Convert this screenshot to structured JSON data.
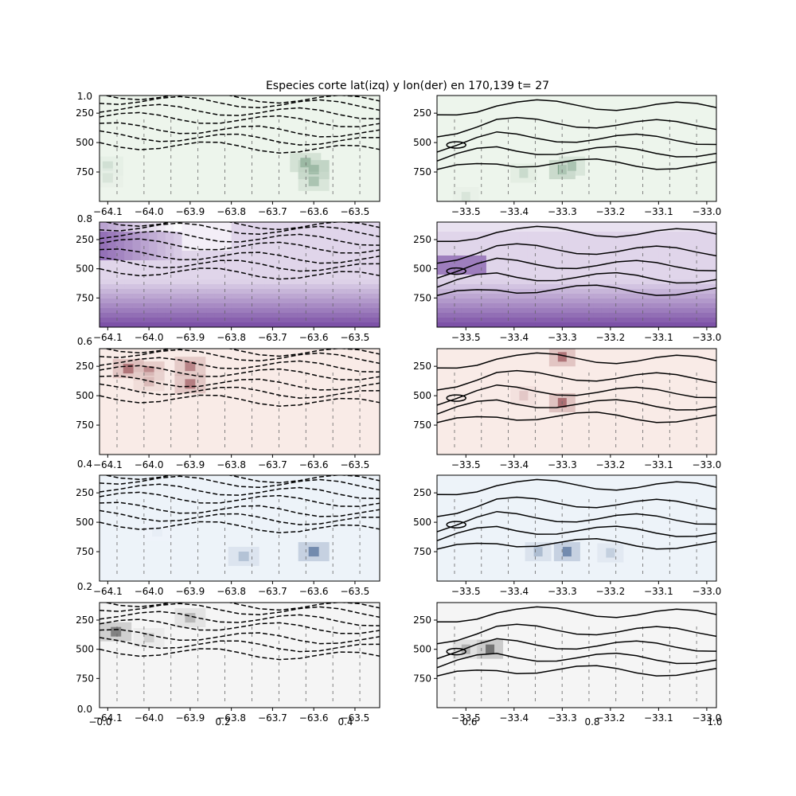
{
  "figure_title": "Especies corte lat(izq) y lon(der) en 170,139 t= 27",
  "chart_data": [
    {
      "type": "heatmap",
      "panel": "row1-left",
      "colormap": "greens",
      "xlim": [
        -64.12,
        -63.44
      ],
      "ylim": [
        1000,
        100
      ],
      "xticks": [
        "-64.1",
        "-64.0",
        "-63.9",
        "-63.8",
        "-63.7",
        "-63.6",
        "-63.5"
      ],
      "yticks": [
        "250",
        "500",
        "750"
      ],
      "contours": "dashed",
      "cells": [
        {
          "x": -64.1,
          "y": 700,
          "v": 0.25
        },
        {
          "x": -64.1,
          "y": 800,
          "v": 0.2
        },
        {
          "x": -63.6,
          "y": 730,
          "v": 0.95
        },
        {
          "x": -63.6,
          "y": 830,
          "v": 0.5
        },
        {
          "x": -63.62,
          "y": 670,
          "v": 0.6
        }
      ]
    },
    {
      "type": "heatmap",
      "panel": "row1-right",
      "colormap": "greens",
      "xlim": [
        -33.56,
        -32.98
      ],
      "ylim": [
        1000,
        100
      ],
      "xticks": [
        "-33.5",
        "-33.4",
        "-33.3",
        "-33.2",
        "-33.1",
        "-33.0"
      ],
      "yticks": [
        "250",
        "500",
        "750"
      ],
      "contours": "solid",
      "cells": [
        {
          "x": -33.38,
          "y": 760,
          "v": 0.3
        },
        {
          "x": -33.3,
          "y": 730,
          "v": 0.8
        },
        {
          "x": -33.28,
          "y": 700,
          "v": 0.5
        },
        {
          "x": -33.5,
          "y": 960,
          "v": 0.2
        }
      ]
    },
    {
      "type": "heatmap",
      "panel": "row2-left",
      "colormap": "purples",
      "xlim": [
        -64.12,
        -63.44
      ],
      "ylim": [
        1000,
        100
      ],
      "xticks": [
        "-64.1",
        "-64.0",
        "-63.9",
        "-63.8",
        "-63.7",
        "-63.6",
        "-63.5"
      ],
      "yticks": [
        "250",
        "500",
        "750"
      ],
      "contours": "dashed"
    },
    {
      "type": "heatmap",
      "panel": "row2-right",
      "colormap": "purples",
      "xlim": [
        -33.56,
        -32.98
      ],
      "ylim": [
        1000,
        100
      ],
      "xticks": [
        "-33.5",
        "-33.4",
        "-33.3",
        "-33.2",
        "-33.1",
        "-33.0"
      ],
      "yticks": [
        "250",
        "500",
        "750"
      ],
      "contours": "solid"
    },
    {
      "type": "heatmap",
      "panel": "row3-left",
      "colormap": "reds",
      "xlim": [
        -64.12,
        -63.44
      ],
      "ylim": [
        1000,
        100
      ],
      "xticks": [
        "-64.1",
        "-64.0",
        "-63.9",
        "-63.8",
        "-63.7",
        "-63.6",
        "-63.5"
      ],
      "yticks": [
        "250",
        "500",
        "750"
      ],
      "contours": "dashed",
      "cells": [
        {
          "x": -64.05,
          "y": 270,
          "v": 0.85
        },
        {
          "x": -64.0,
          "y": 290,
          "v": 0.7
        },
        {
          "x": -63.9,
          "y": 250,
          "v": 0.75
        },
        {
          "x": -63.9,
          "y": 400,
          "v": 0.8
        },
        {
          "x": -64.0,
          "y": 380,
          "v": 0.4
        }
      ]
    },
    {
      "type": "heatmap",
      "panel": "row3-right",
      "colormap": "reds",
      "xlim": [
        -33.56,
        -32.98
      ],
      "ylim": [
        1000,
        100
      ],
      "xticks": [
        "-33.5",
        "-33.4",
        "-33.3",
        "-33.2",
        "-33.1",
        "-33.0"
      ],
      "yticks": [
        "250",
        "500",
        "750"
      ],
      "contours": "solid",
      "cells": [
        {
          "x": -33.3,
          "y": 170,
          "v": 0.85
        },
        {
          "x": -33.3,
          "y": 560,
          "v": 0.9
        },
        {
          "x": -33.38,
          "y": 500,
          "v": 0.3
        }
      ]
    },
    {
      "type": "heatmap",
      "panel": "row4-left",
      "colormap": "blues",
      "xlim": [
        -64.12,
        -63.44
      ],
      "ylim": [
        1000,
        100
      ],
      "xticks": [
        "-64.1",
        "-64.0",
        "-63.9",
        "-63.8",
        "-63.7",
        "-63.6",
        "-63.5"
      ],
      "yticks": [
        "250",
        "500",
        "750"
      ],
      "contours": "dashed",
      "cells": [
        {
          "x": -63.6,
          "y": 750,
          "v": 0.9
        },
        {
          "x": -63.77,
          "y": 790,
          "v": 0.45
        },
        {
          "x": -63.98,
          "y": 580,
          "v": 0.1
        }
      ]
    },
    {
      "type": "heatmap",
      "panel": "row4-right",
      "colormap": "blues",
      "xlim": [
        -33.56,
        -32.98
      ],
      "ylim": [
        1000,
        100
      ],
      "xticks": [
        "-33.5",
        "-33.4",
        "-33.3",
        "-33.2",
        "-33.1",
        "-33.0"
      ],
      "yticks": [
        "250",
        "500",
        "750"
      ],
      "contours": "solid",
      "cells": [
        {
          "x": -33.29,
          "y": 750,
          "v": 0.9
        },
        {
          "x": -33.35,
          "y": 750,
          "v": 0.5
        },
        {
          "x": -33.2,
          "y": 760,
          "v": 0.35
        }
      ]
    },
    {
      "type": "heatmap",
      "panel": "row5-left",
      "colormap": "greys",
      "xlim": [
        -64.12,
        -63.44
      ],
      "ylim": [
        1000,
        100
      ],
      "xticks": [
        "-64.1",
        "-64.0",
        "-63.9",
        "-63.8",
        "-63.7",
        "-63.6",
        "-63.5"
      ],
      "yticks": [
        "250",
        "500",
        "750"
      ],
      "contours": "dashed",
      "cells": [
        {
          "x": -64.08,
          "y": 350,
          "v": 0.8
        },
        {
          "x": -63.9,
          "y": 230,
          "v": 0.45
        },
        {
          "x": -64.0,
          "y": 400,
          "v": 0.3
        }
      ]
    },
    {
      "type": "heatmap",
      "panel": "row5-right",
      "colormap": "greys",
      "xlim": [
        -33.56,
        -32.98
      ],
      "ylim": [
        1000,
        100
      ],
      "xticks": [
        "-33.5",
        "-33.4",
        "-33.3",
        "-33.2",
        "-33.1",
        "-33.0"
      ],
      "yticks": [
        "250",
        "500",
        "750"
      ],
      "contours": "solid",
      "cells": [
        {
          "x": -33.45,
          "y": 500,
          "v": 0.9
        },
        {
          "x": -33.5,
          "y": 500,
          "v": 0.5
        }
      ]
    }
  ],
  "left_colorbar_ticks": [
    "1.0",
    "0.8",
    "0.6",
    "0.4",
    "0.2",
    "0.0"
  ],
  "bottom_overlay_left": [
    "−0.0",
    "0.2",
    "0.4"
  ],
  "bottom_overlay_right": [
    "0.6",
    "0.8",
    "1.0"
  ]
}
